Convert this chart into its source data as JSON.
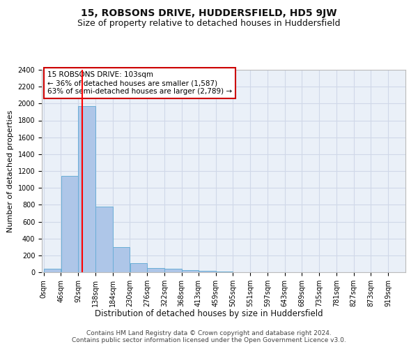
{
  "title": "15, ROBSONS DRIVE, HUDDERSFIELD, HD5 9JW",
  "subtitle": "Size of property relative to detached houses in Huddersfield",
  "xlabel": "Distribution of detached houses by size in Huddersfield",
  "ylabel": "Number of detached properties",
  "bin_edges": [
    0,
    46,
    92,
    138,
    184,
    230,
    276,
    322,
    368,
    413,
    459,
    505,
    551,
    597,
    643,
    689,
    735,
    781,
    827,
    873,
    919
  ],
  "bar_heights": [
    40,
    1140,
    1970,
    780,
    300,
    105,
    50,
    40,
    25,
    15,
    5,
    0,
    0,
    0,
    0,
    0,
    0,
    0,
    0,
    0
  ],
  "bar_color": "#aec6e8",
  "bar_edge_color": "#6aaed6",
  "grid_color": "#d0d8e8",
  "bg_color": "#eaf0f8",
  "red_line_x": 103,
  "annotation_text": "15 ROBSONS DRIVE: 103sqm\n← 36% of detached houses are smaller (1,587)\n63% of semi-detached houses are larger (2,789) →",
  "annotation_box_color": "#ffffff",
  "annotation_border_color": "#cc0000",
  "ylim": [
    0,
    2400
  ],
  "yticks": [
    0,
    200,
    400,
    600,
    800,
    1000,
    1200,
    1400,
    1600,
    1800,
    2000,
    2200,
    2400
  ],
  "tick_labels": [
    "0sqm",
    "46sqm",
    "92sqm",
    "138sqm",
    "184sqm",
    "230sqm",
    "276sqm",
    "322sqm",
    "368sqm",
    "413sqm",
    "459sqm",
    "505sqm",
    "551sqm",
    "597sqm",
    "643sqm",
    "689sqm",
    "735sqm",
    "781sqm",
    "827sqm",
    "873sqm",
    "919sqm"
  ],
  "footnote": "Contains HM Land Registry data © Crown copyright and database right 2024.\nContains public sector information licensed under the Open Government Licence v3.0.",
  "title_fontsize": 10,
  "subtitle_fontsize": 9,
  "xlabel_fontsize": 8.5,
  "ylabel_fontsize": 8,
  "tick_fontsize": 7,
  "annot_fontsize": 7.5,
  "footnote_fontsize": 6.5
}
